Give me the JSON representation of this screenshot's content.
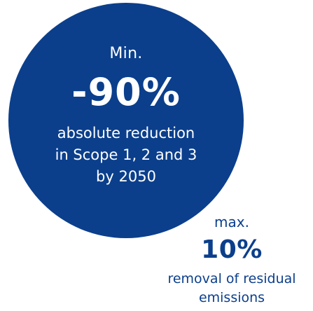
{
  "main_target": {
    "prefix": "Min.",
    "value": "-90%",
    "description_lines": [
      "absolute reduction",
      "in Scope 1, 2 and 3",
      "by 2050"
    ]
  },
  "residual": {
    "prefix": "max.",
    "value": "10%",
    "description_lines": [
      "removal of residual",
      "emissions"
    ]
  },
  "colors": {
    "brand_blue": "#0b3f8c",
    "text_on_brand": "#ffffff"
  }
}
